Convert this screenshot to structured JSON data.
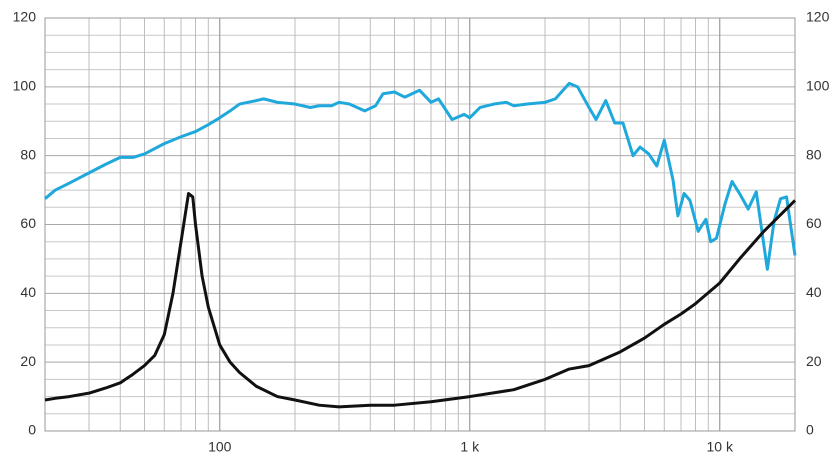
{
  "chart_data": {
    "type": "line",
    "xscale": "log",
    "xlim": [
      20,
      20000
    ],
    "xticks": [
      {
        "value": 100,
        "label": "100"
      },
      {
        "value": 1000,
        "label": "1 k"
      },
      {
        "value": 10000,
        "label": "10 k"
      }
    ],
    "xgrid": [
      20,
      30,
      40,
      50,
      60,
      70,
      80,
      90,
      100,
      200,
      300,
      400,
      500,
      600,
      700,
      800,
      900,
      1000,
      2000,
      3000,
      4000,
      5000,
      6000,
      7000,
      8000,
      9000,
      10000,
      20000
    ],
    "ylim": [
      0,
      120
    ],
    "yticks": [
      0,
      20,
      40,
      60,
      80,
      100,
      120
    ],
    "ygrid": [
      5,
      10,
      15,
      25,
      30,
      35,
      45,
      50,
      55,
      65,
      70,
      75,
      85,
      90,
      95,
      105,
      110,
      115
    ],
    "y2lim": [
      0,
      120
    ],
    "y2ticks": [
      0,
      20,
      40,
      60,
      80,
      100,
      120
    ],
    "grid": true,
    "series": [
      {
        "color": "#1fa8dc",
        "x": [
          20,
          22,
          25,
          30,
          35,
          40,
          45,
          50,
          60,
          70,
          80,
          90,
          100,
          110,
          120,
          140,
          150,
          170,
          200,
          230,
          250,
          280,
          300,
          330,
          380,
          420,
          450,
          500,
          550,
          630,
          700,
          750,
          850,
          950,
          1000,
          1100,
          1250,
          1400,
          1500,
          1700,
          2000,
          2200,
          2500,
          2700,
          3000,
          3200,
          3500,
          3800,
          4100,
          4500,
          4800,
          5200,
          5600,
          6000,
          6500,
          6800,
          7200,
          7600,
          8200,
          8800,
          9200,
          9700,
          10500,
          11200,
          12000,
          13000,
          14000,
          15500,
          16500,
          17500,
          18500,
          20000
        ],
        "values": [
          67.5,
          70,
          72,
          75,
          77.5,
          79.5,
          79.5,
          80.5,
          83.5,
          85.5,
          87,
          89,
          91,
          93,
          95,
          96,
          96.5,
          95.5,
          95,
          94,
          94.5,
          94.5,
          95.5,
          95,
          93,
          94.5,
          98,
          98.5,
          97,
          99,
          95.5,
          96.5,
          90.5,
          92,
          91,
          94,
          95,
          95.5,
          94.5,
          95,
          95.5,
          96.5,
          101,
          100,
          94,
          90.5,
          96,
          89.5,
          89.5,
          80,
          82.5,
          80.5,
          77,
          84.5,
          73,
          62.5,
          69,
          67,
          58,
          61.5,
          55,
          56,
          66,
          72.5,
          69,
          64.5,
          69.5,
          47,
          61,
          67.5,
          68,
          51
        ]
      },
      {
        "color": "#111111",
        "x": [
          20,
          22,
          25,
          30,
          35,
          40,
          45,
          50,
          55,
          60,
          65,
          70,
          75,
          78,
          80,
          85,
          90,
          100,
          110,
          120,
          140,
          170,
          200,
          250,
          300,
          400,
          500,
          700,
          1000,
          1500,
          2000,
          2500,
          3000,
          4000,
          5000,
          6000,
          7000,
          8000,
          10000,
          12000,
          15000,
          20000
        ],
        "values": [
          9,
          9.5,
          10,
          11,
          12.5,
          14,
          16.5,
          19,
          22,
          28,
          40,
          55,
          69,
          68,
          60,
          45,
          36,
          25,
          20,
          17,
          13,
          10,
          9,
          7.5,
          7,
          7.5,
          7.5,
          8.5,
          10,
          12,
          15,
          18,
          19,
          23,
          27,
          31,
          34,
          37,
          43,
          50,
          58,
          67
        ]
      }
    ]
  }
}
